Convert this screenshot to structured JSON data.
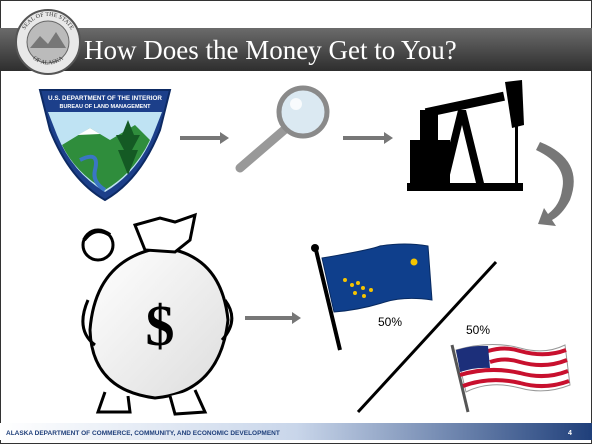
{
  "slide": {
    "title": "How Does the Money Get to You?",
    "seal": {
      "top": "SEAL OF THE STATE",
      "bottom": "OF ALASKA"
    },
    "blm_logo": {
      "line1": "U.S. DEPARTMENT OF THE INTERIOR",
      "line2": "BUREAU OF LAND MANAGEMENT"
    },
    "state_share": "50%",
    "federal_share": "50%",
    "footer": "ALASKA DEPARTMENT OF COMMERCE, COMMUNITY, AND ECONOMIC DEVELOPMENT",
    "page_number": "4"
  }
}
